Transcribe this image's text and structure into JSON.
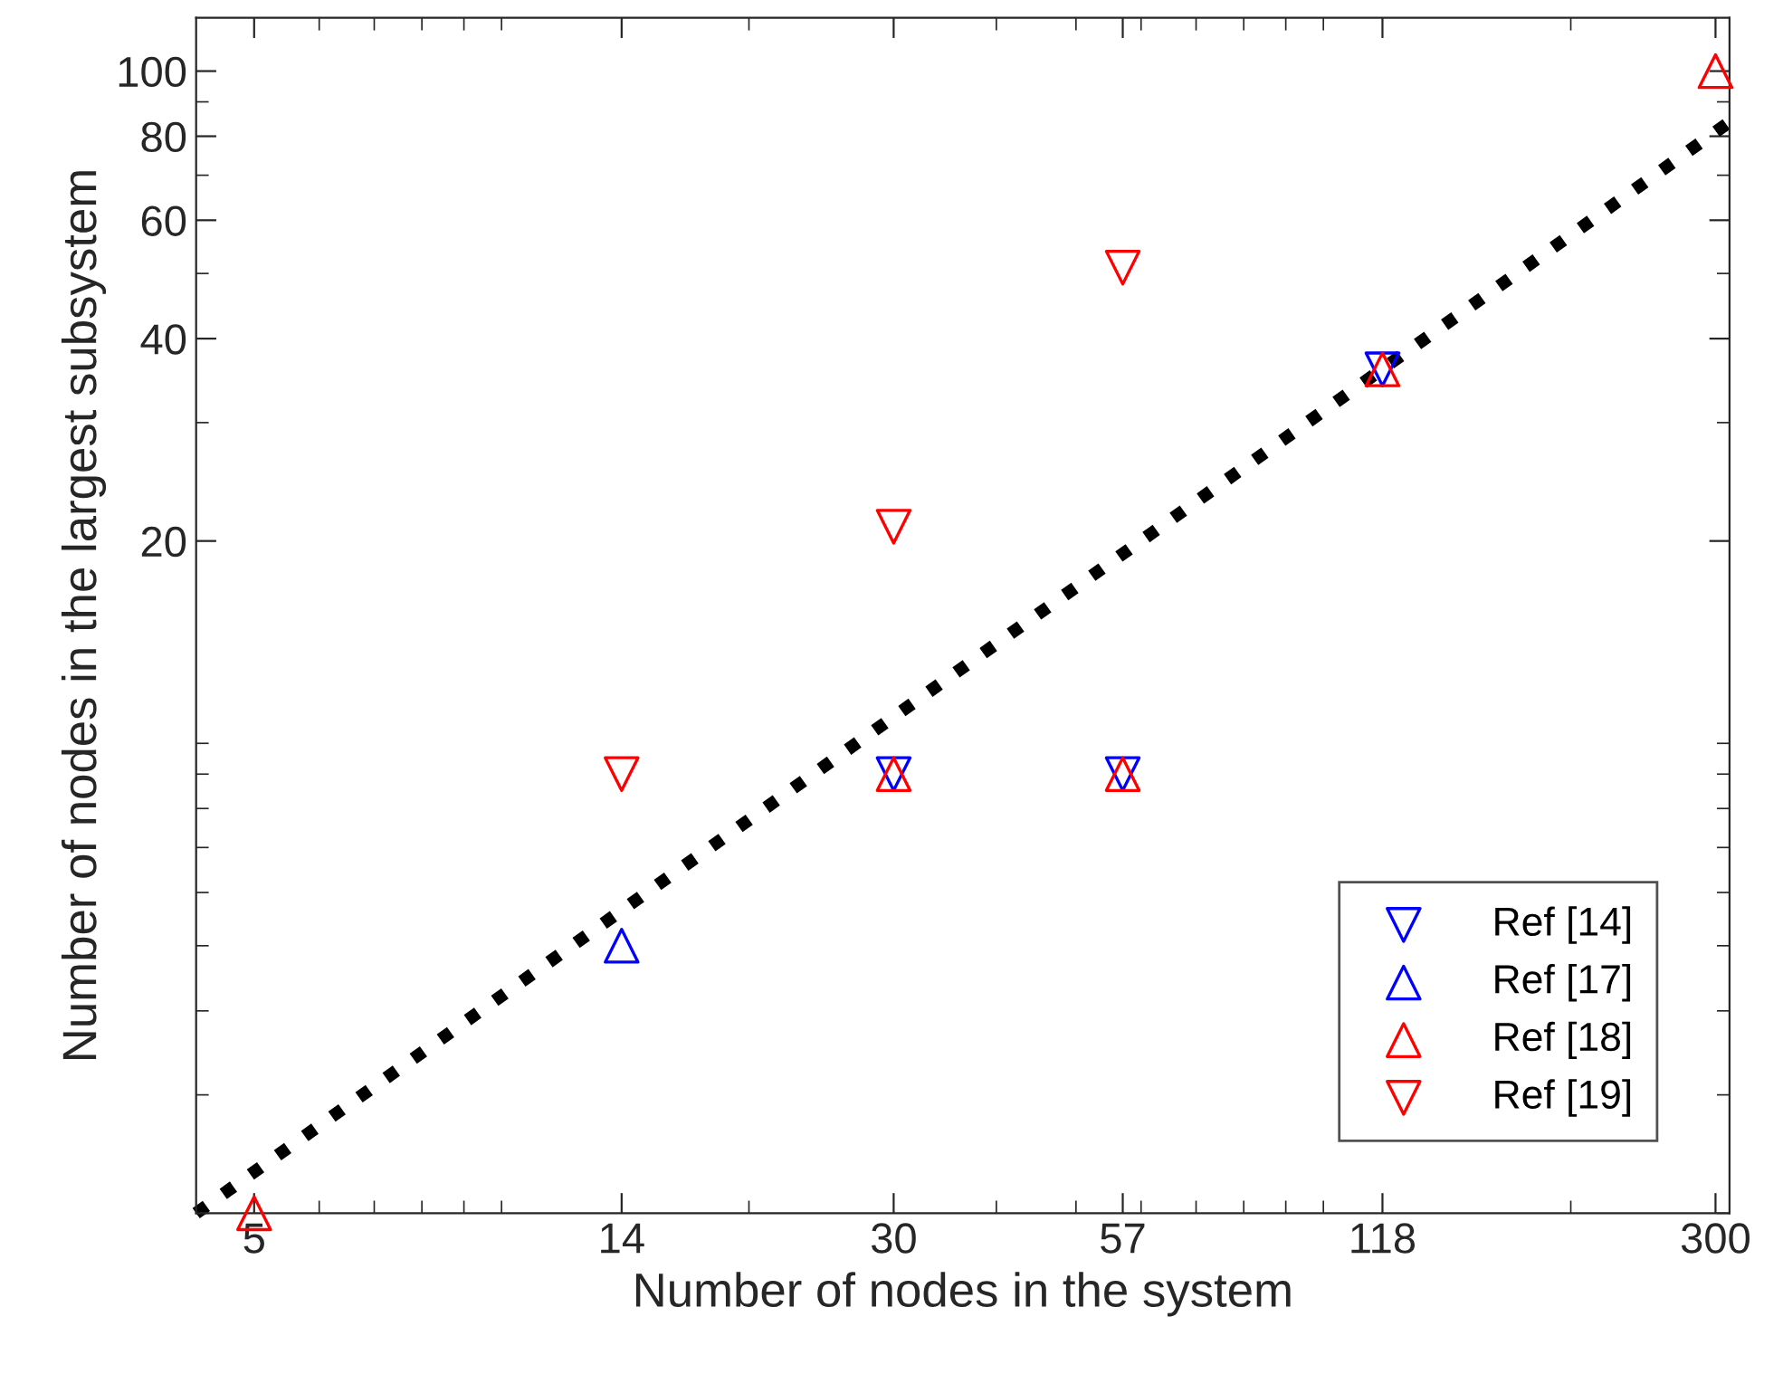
{
  "chart_data": {
    "type": "scatter",
    "xlabel": "Number of nodes in the system",
    "ylabel": "Number of nodes in the largest subsystem",
    "log": "xy",
    "xlim": [
      4.25,
      312
    ],
    "ylim": [
      2,
      120
    ],
    "xticks": [
      5,
      14,
      30,
      57,
      118,
      300
    ],
    "yticks": [
      20,
      40,
      60,
      80,
      100
    ],
    "grid": false,
    "legend": "bottom right",
    "series": [
      {
        "type": "line",
        "color": "#000000",
        "line_style": "dotted",
        "marker": "none",
        "x": [
          4.25,
          312
        ],
        "values": [
          2,
          84
        ]
      },
      {
        "name": "Ref [14]",
        "color": "#0000ff",
        "marker": "triangle_down",
        "x": [
          30,
          57,
          118
        ],
        "values": [
          9,
          9,
          36
        ]
      },
      {
        "name": "Ref [17]",
        "color": "#0000ff",
        "marker": "triangle",
        "x": [
          14
        ],
        "values": [
          5
        ]
      },
      {
        "name": "Ref [18]",
        "color": "#ff0000",
        "marker": "triangle",
        "x": [
          5,
          30,
          57,
          118,
          300
        ],
        "values": [
          2,
          9,
          9,
          36,
          100
        ]
      },
      {
        "name": "Ref [19]",
        "color": "#ff0000",
        "marker": "triangle_down",
        "x": [
          14,
          30,
          57
        ],
        "values": [
          9,
          21,
          51
        ]
      }
    ]
  }
}
